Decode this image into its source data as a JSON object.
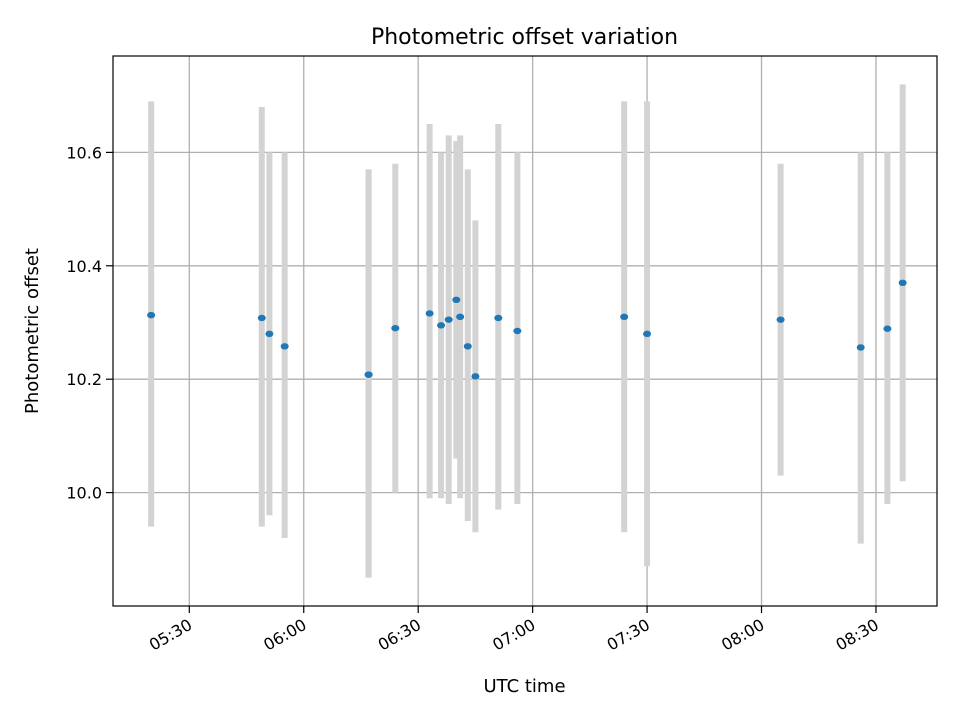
{
  "chart_data": {
    "type": "scatter",
    "title": "Photometric offset variation",
    "xlabel": "UTC time",
    "ylabel": "Photometric offset",
    "x_axis_type": "time",
    "xlim": [
      "05:10",
      "08:46"
    ],
    "ylim": [
      9.8,
      10.77
    ],
    "x_ticks": [
      "05:30",
      "06:00",
      "06:30",
      "07:00",
      "07:30",
      "08:00",
      "08:30"
    ],
    "y_ticks": [
      10.0,
      10.2,
      10.4,
      10.6
    ],
    "y_tick_labels": [
      "10.0",
      "10.2",
      "10.4",
      "10.6"
    ],
    "grid": true,
    "marker_color": "#1f77b4",
    "errorbar_color": "#d3d3d3",
    "points": [
      {
        "x": "05:20",
        "y": 10.313,
        "low": 9.94,
        "high": 10.69
      },
      {
        "x": "05:49",
        "y": 10.308,
        "low": 9.94,
        "high": 10.68
      },
      {
        "x": "05:51",
        "y": 10.28,
        "low": 9.96,
        "high": 10.6
      },
      {
        "x": "05:55",
        "y": 10.258,
        "low": 9.92,
        "high": 10.6
      },
      {
        "x": "06:17",
        "y": 10.208,
        "low": 9.85,
        "high": 10.57
      },
      {
        "x": "06:17",
        "y": 10.208,
        "low": 9.85,
        "high": 10.57
      },
      {
        "x": "06:24",
        "y": 10.29,
        "low": 10.0,
        "high": 10.58
      },
      {
        "x": "06:33",
        "y": 10.316,
        "low": 9.99,
        "high": 10.65
      },
      {
        "x": "06:36",
        "y": 10.295,
        "low": 9.99,
        "high": 10.6
      },
      {
        "x": "06:38",
        "y": 10.305,
        "low": 9.98,
        "high": 10.63
      },
      {
        "x": "06:40",
        "y": 10.34,
        "low": 10.06,
        "high": 10.62
      },
      {
        "x": "06:41",
        "y": 10.31,
        "low": 9.99,
        "high": 10.63
      },
      {
        "x": "06:43",
        "y": 10.258,
        "low": 9.95,
        "high": 10.57
      },
      {
        "x": "06:45",
        "y": 10.205,
        "low": 9.93,
        "high": 10.48
      },
      {
        "x": "06:51",
        "y": 10.308,
        "low": 9.97,
        "high": 10.65
      },
      {
        "x": "06:56",
        "y": 10.285,
        "low": 9.98,
        "high": 10.6
      },
      {
        "x": "07:24",
        "y": 10.31,
        "low": 9.93,
        "high": 10.69
      },
      {
        "x": "07:30",
        "y": 10.28,
        "low": 9.87,
        "high": 10.69
      },
      {
        "x": "08:05",
        "y": 10.305,
        "low": 10.03,
        "high": 10.58
      },
      {
        "x": "08:26",
        "y": 10.256,
        "low": 9.91,
        "high": 10.6
      },
      {
        "x": "08:33",
        "y": 10.289,
        "low": 9.98,
        "high": 10.6
      },
      {
        "x": "08:37",
        "y": 10.37,
        "low": 10.02,
        "high": 10.72
      }
    ]
  }
}
